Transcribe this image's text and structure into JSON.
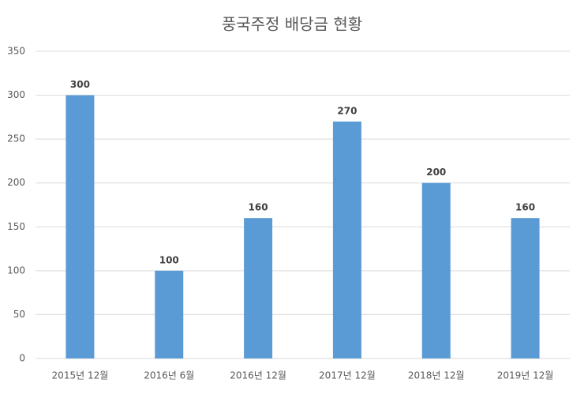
{
  "chart_data": {
    "type": "bar",
    "title": "풍국주정 배당금 현황",
    "categories": [
      "2015년 12월",
      "2016년 6월",
      "2016년 12월",
      "2017년 12월",
      "2018년 12월",
      "2019년 12월"
    ],
    "values": [
      300,
      100,
      160,
      270,
      200,
      160
    ],
    "color": "#5b9bd5",
    "ylim": [
      0,
      350
    ],
    "yticks": [
      0,
      50,
      100,
      150,
      200,
      250,
      300,
      350
    ],
    "grid": true,
    "data_labels": true
  }
}
